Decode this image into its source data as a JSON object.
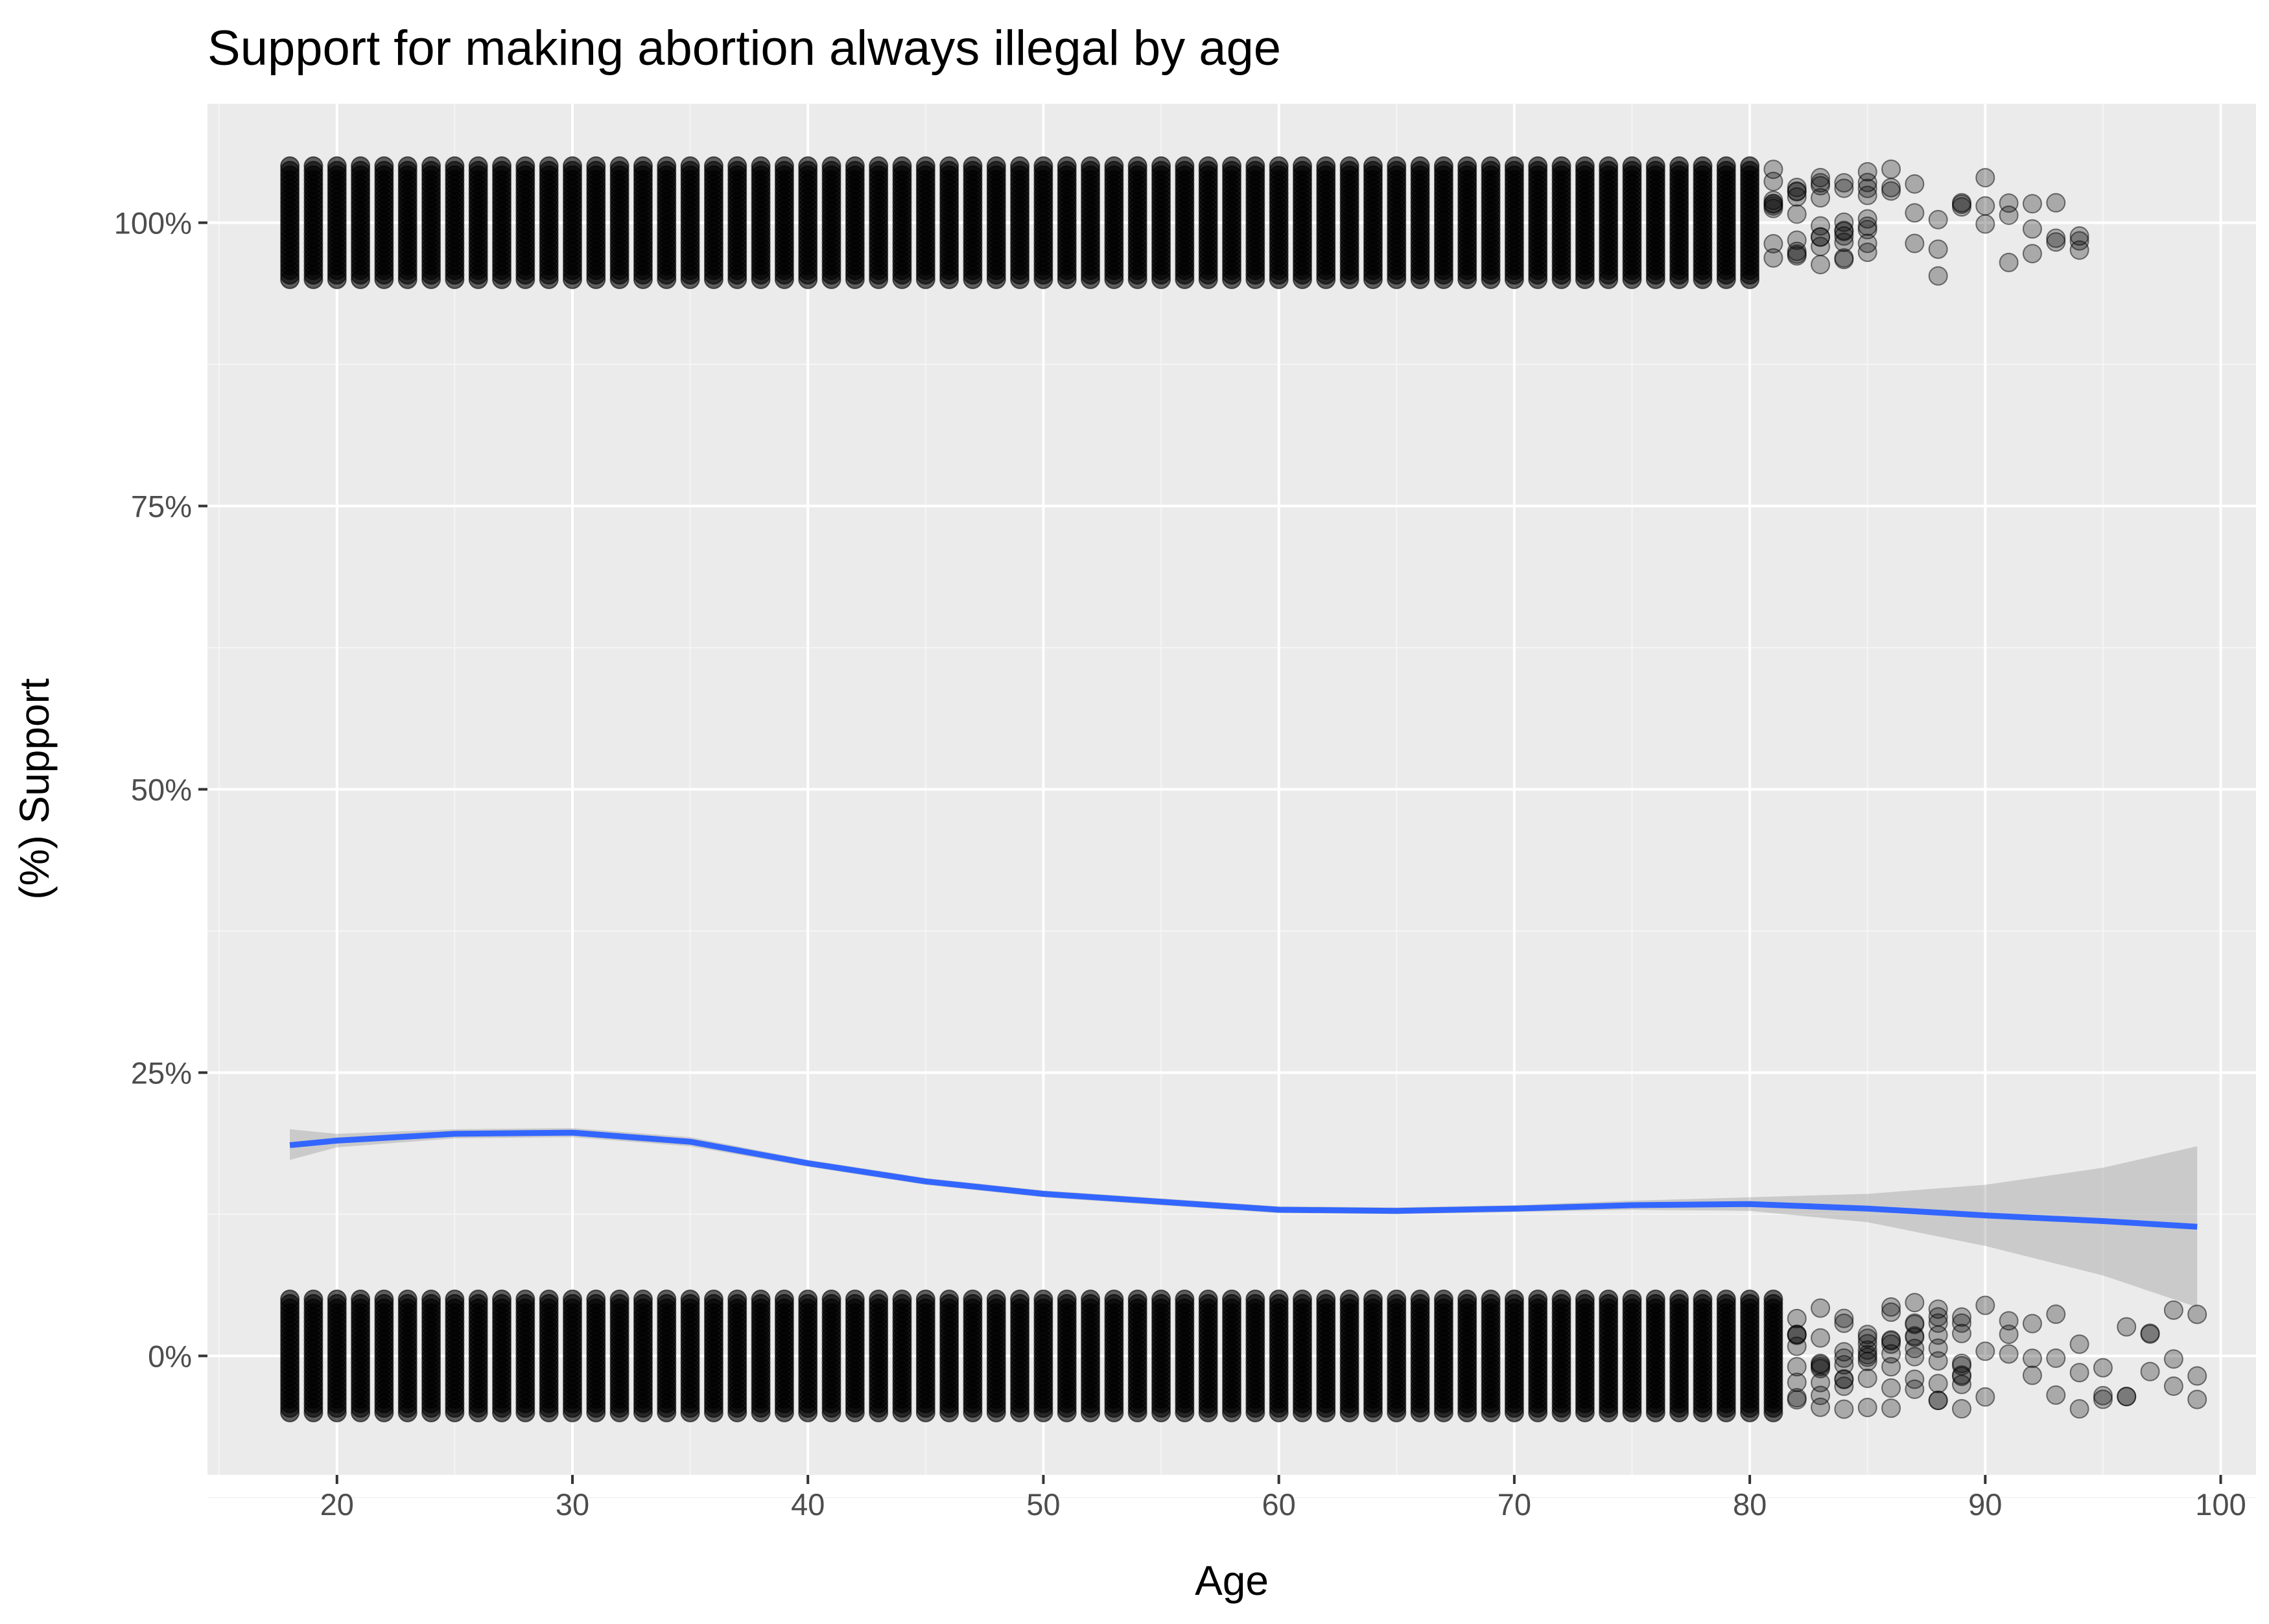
{
  "chart_data": {
    "type": "scatter",
    "title": "Support for making abortion always illegal by age",
    "xlabel": "Age",
    "ylabel": "(%) Support",
    "x_ticks": [
      20,
      30,
      40,
      50,
      60,
      70,
      80,
      90,
      100
    ],
    "x_tick_labels": [
      "20",
      "30",
      "40",
      "50",
      "60",
      "70",
      "80",
      "90",
      "100"
    ],
    "y_ticks": [
      0,
      0.25,
      0.5,
      0.75,
      1.0
    ],
    "y_tick_labels": [
      "0%",
      "25%",
      "50%",
      "75%",
      "100%"
    ],
    "xlim": [
      14.5,
      101.5
    ],
    "ylim": [
      -0.105,
      1.105
    ],
    "grid": true,
    "legend": "none",
    "jitter_height": 0.05,
    "colors": {
      "panel_background": "#ebebeb",
      "grid_major": "#ffffff",
      "grid_minor": "#f5f5f5",
      "points": "#000000",
      "smooth_line": "#3366ff",
      "confidence_band": "#999999"
    },
    "series": [
      {
        "kind": "points",
        "values": [
          {
            "x_from": 18,
            "x_to": 80,
            "y": 1,
            "density": "solid"
          },
          {
            "x_from": 18,
            "x_to": 81,
            "y": 0,
            "density": "solid"
          },
          {
            "x_from": 81,
            "x_to": 85,
            "y": 1,
            "density": "moderate"
          },
          {
            "x_from": 82,
            "x_to": 89,
            "y": 0,
            "density": "moderate"
          },
          {
            "x_from": 86,
            "x_to": 94,
            "y": 1,
            "density": "sparse"
          },
          {
            "x_from": 90,
            "x_to": 99,
            "y": 0,
            "density": "sparse"
          }
        ]
      },
      {
        "kind": "loess-smooth",
        "x": [
          18,
          20,
          25,
          30,
          35,
          40,
          45,
          50,
          55,
          60,
          65,
          70,
          75,
          80,
          85,
          90,
          95,
          99
        ],
        "y": [
          0.186,
          0.19,
          0.196,
          0.197,
          0.189,
          0.17,
          0.154,
          0.143,
          0.136,
          0.129,
          0.128,
          0.13,
          0.133,
          0.134,
          0.13,
          0.124,
          0.119,
          0.114
        ],
        "ci_low": [
          0.173,
          0.184,
          0.192,
          0.193,
          0.185,
          0.167,
          0.151,
          0.14,
          0.133,
          0.126,
          0.125,
          0.127,
          0.129,
          0.128,
          0.118,
          0.097,
          0.071,
          0.043
        ],
        "ci_high": [
          0.2,
          0.196,
          0.2,
          0.201,
          0.193,
          0.173,
          0.157,
          0.146,
          0.139,
          0.132,
          0.131,
          0.133,
          0.137,
          0.14,
          0.143,
          0.151,
          0.166,
          0.185
        ]
      }
    ]
  }
}
